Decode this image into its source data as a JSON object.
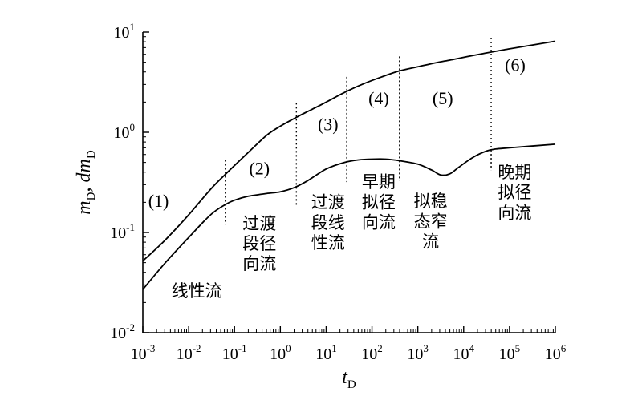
{
  "chart_data": {
    "type": "line",
    "xscale": "log",
    "yscale": "log",
    "xlim": [
      0.001,
      1000000
    ],
    "ylim": [
      0.01,
      10
    ],
    "xlabel": {
      "base": "t",
      "sub": "D"
    },
    "ylabel": {
      "parts": [
        {
          "base": "m",
          "sub": "D"
        },
        {
          "base": ", dm",
          "sub": "D"
        }
      ]
    },
    "xticks": [
      {
        "base": "10",
        "exp": "-3"
      },
      {
        "base": "10",
        "exp": "-2"
      },
      {
        "base": "10",
        "exp": "-1"
      },
      {
        "base": "10",
        "exp": "0"
      },
      {
        "base": "10",
        "exp": "1"
      },
      {
        "base": "10",
        "exp": "2"
      },
      {
        "base": "10",
        "exp": "3"
      },
      {
        "base": "10",
        "exp": "4"
      },
      {
        "base": "10",
        "exp": "5"
      },
      {
        "base": "10",
        "exp": "6"
      }
    ],
    "yticks": [
      {
        "base": "10",
        "exp": "-2"
      },
      {
        "base": "10",
        "exp": "-1"
      },
      {
        "base": "10",
        "exp": "0"
      },
      {
        "base": "10",
        "exp": "1"
      }
    ],
    "series": [
      {
        "x": [
          0.001,
          0.003,
          0.01,
          0.03,
          0.0631,
          0.2,
          0.5,
          1,
          2.51,
          5,
          10,
          25.1,
          60,
          158,
          398,
          1000,
          2510,
          5010,
          10000,
          31600,
          100000,
          1000000
        ],
        "y": [
          0.052,
          0.083,
          0.15,
          0.27,
          0.38,
          0.63,
          0.93,
          1.15,
          1.45,
          1.7,
          2.0,
          2.5,
          3.0,
          3.55,
          4.1,
          4.5,
          4.95,
          5.25,
          5.6,
          6.2,
          6.8,
          8.1
        ]
      },
      {
        "x": [
          0.001,
          0.003,
          0.01,
          0.03,
          0.0631,
          0.1,
          0.2,
          0.5,
          1,
          2,
          4,
          10,
          25.1,
          50,
          100,
          200,
          400,
          1000,
          2000,
          3160,
          5010,
          7940,
          15800,
          31600,
          50100,
          100000,
          1000000
        ],
        "y": [
          0.027,
          0.049,
          0.089,
          0.15,
          0.19,
          0.21,
          0.23,
          0.245,
          0.255,
          0.28,
          0.33,
          0.43,
          0.5,
          0.53,
          0.54,
          0.54,
          0.52,
          0.48,
          0.42,
          0.375,
          0.385,
          0.45,
          0.56,
          0.65,
          0.68,
          0.7,
          0.76
        ]
      }
    ],
    "dividers": [
      0.0631,
      2.24,
      28.2,
      398,
      39800
    ],
    "regions": [
      {
        "num": "(1)",
        "label": [],
        "num_at": [
          0.0022,
          0.18
        ],
        "label_at": [
          0,
          0
        ]
      },
      {
        "num": "(2)",
        "label": [
          "过渡",
          "段径",
          "向流"
        ],
        "num_at": [
          0.35,
          0.38
        ],
        "label_at": [
          0.35,
          0.108
        ]
      },
      {
        "num": "(3)",
        "label": [
          "过渡",
          "段线",
          "性流"
        ],
        "num_at": [
          11,
          1.05
        ],
        "label_at": [
          11,
          0.175
        ]
      },
      {
        "num": "(4)",
        "label": [
          "早期",
          "拟径",
          "向流"
        ],
        "num_at": [
          140,
          1.9
        ],
        "label_at": [
          140,
          0.28
        ]
      },
      {
        "num": "(5)",
        "label": [
          "拟稳",
          "态窄",
          "流"
        ],
        "num_at": [
          3500,
          1.9
        ],
        "label_at": [
          1900,
          0.18
        ]
      },
      {
        "num": "(6)",
        "label": [
          "晚期",
          "拟径",
          "向流"
        ],
        "num_at": [
          133000,
          4.1
        ],
        "label_at": [
          130000,
          0.35
        ]
      }
    ],
    "annotations": [
      {
        "text": "线性流",
        "at": [
          0.015,
          0.023
        ]
      }
    ]
  }
}
